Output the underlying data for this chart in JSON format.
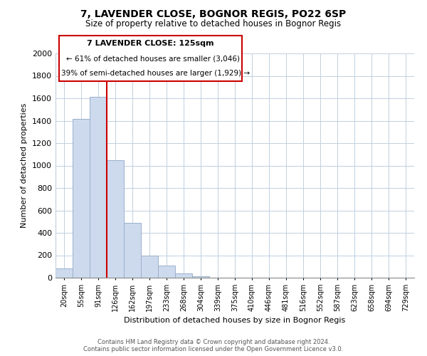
{
  "title": "7, LAVENDER CLOSE, BOGNOR REGIS, PO22 6SP",
  "subtitle": "Size of property relative to detached houses in Bognor Regis",
  "xlabel": "Distribution of detached houses by size in Bognor Regis",
  "ylabel": "Number of detached properties",
  "footnote_line1": "Contains HM Land Registry data © Crown copyright and database right 2024.",
  "footnote_line2": "Contains public sector information licensed under the Open Government Licence v3.0.",
  "bar_labels": [
    "20sqm",
    "55sqm",
    "91sqm",
    "126sqm",
    "162sqm",
    "197sqm",
    "233sqm",
    "268sqm",
    "304sqm",
    "339sqm",
    "375sqm",
    "410sqm",
    "446sqm",
    "481sqm",
    "516sqm",
    "552sqm",
    "587sqm",
    "623sqm",
    "658sqm",
    "694sqm",
    "729sqm"
  ],
  "bar_values": [
    85,
    1415,
    1610,
    1050,
    490,
    200,
    110,
    40,
    15,
    0,
    0,
    0,
    0,
    0,
    0,
    0,
    0,
    0,
    0,
    0,
    0
  ],
  "bar_color": "#cddaed",
  "bar_edge_color": "#9ab0cc",
  "highlight_line_color": "#cc0000",
  "ylim": [
    0,
    2000
  ],
  "yticks": [
    0,
    200,
    400,
    600,
    800,
    1000,
    1200,
    1400,
    1600,
    1800,
    2000
  ],
  "annotation_text_line1": "7 LAVENDER CLOSE: 125sqm",
  "annotation_text_line2": "← 61% of detached houses are smaller (3,046)",
  "annotation_text_line3": "39% of semi-detached houses are larger (1,929) →",
  "background_color": "#ffffff",
  "grid_color": "#c0d0e0"
}
